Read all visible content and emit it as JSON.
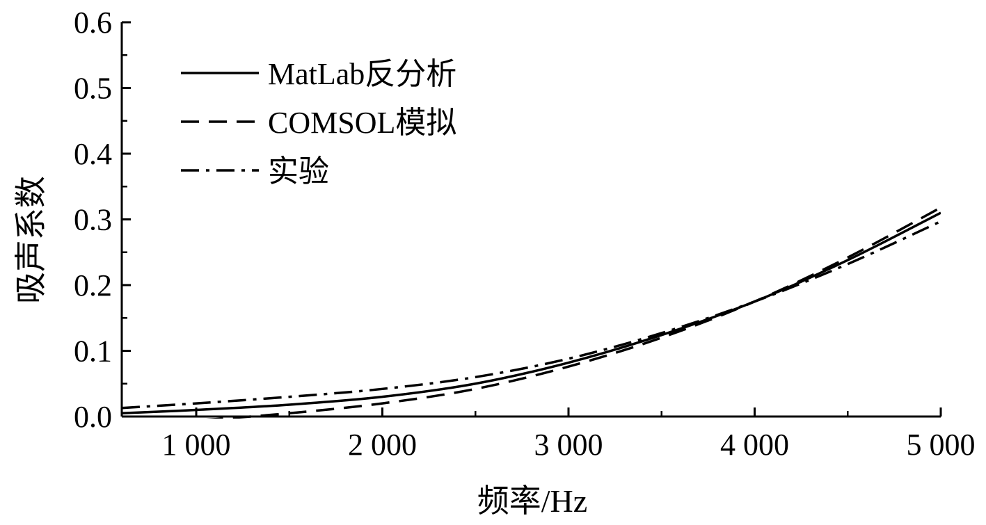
{
  "chart_data": {
    "type": "line",
    "xlabel": "频率/Hz",
    "ylabel": "吸声系数",
    "xlim": [
      600,
      5000
    ],
    "ylim": [
      0,
      0.6
    ],
    "x_ticks": [
      1000,
      2000,
      3000,
      4000,
      5000
    ],
    "x_tick_labels": [
      "1 000",
      "2 000",
      "3 000",
      "4 000",
      "5 000"
    ],
    "y_ticks": [
      0,
      0.1,
      0.2,
      0.3,
      0.4,
      0.5,
      0.6
    ],
    "y_tick_labels": [
      "0.0",
      "0.1",
      "0.2",
      "0.3",
      "0.4",
      "0.5",
      "0.6"
    ],
    "legend_position": "top-left",
    "x": [
      600,
      1000,
      1500,
      2000,
      2500,
      3000,
      3500,
      4000,
      4500,
      5000
    ],
    "series": [
      {
        "name": "MatLab反分析",
        "dash": "solid",
        "color": "#000000",
        "values": [
          0.005,
          0.01,
          0.018,
          0.03,
          0.05,
          0.082,
          0.124,
          0.175,
          0.238,
          0.31
        ]
      },
      {
        "name": "COMSOL模拟",
        "dash": "dashed",
        "color": "#000000",
        "values": [
          -0.012,
          -0.006,
          0.005,
          0.02,
          0.042,
          0.076,
          0.12,
          0.175,
          0.242,
          0.318
        ]
      },
      {
        "name": "实验",
        "dash": "dashdot",
        "color": "#000000",
        "values": [
          0.013,
          0.02,
          0.03,
          0.042,
          0.06,
          0.088,
          0.127,
          0.175,
          0.232,
          0.297
        ]
      }
    ]
  }
}
